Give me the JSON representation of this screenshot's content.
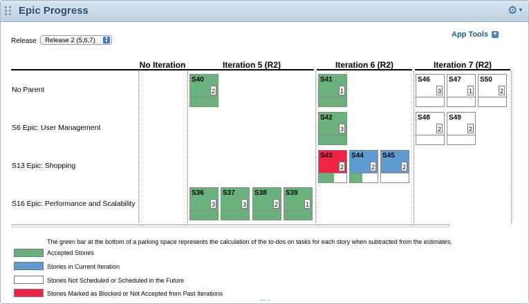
{
  "header": {
    "title": "Epic Progress",
    "gear_icon": "gear-icon"
  },
  "release": {
    "label": "Release",
    "value": "Release 2 (5,6,7)"
  },
  "app_tools": {
    "label": "App Tools"
  },
  "columns": [
    "No Iteration",
    "Iteration 5 (R2)",
    "Iteration 6 (R2)",
    "Iteration 7 (R2)"
  ],
  "rows": [
    "No Parent",
    "S6 Epic: User Management",
    "S13 Epic: Shopping",
    "S16 Epic: Performance and Scalability"
  ],
  "colors": {
    "accepted": "#6ab27b",
    "current": "#5d9bd1",
    "future": "#ffffff",
    "blocked": "#ee2447",
    "title": "#2a4f74"
  },
  "cards": [
    {
      "id": "S40",
      "estimate": "2",
      "status": "accepted",
      "progress": 1.0
    },
    {
      "id": "S41",
      "estimate": "1",
      "status": "accepted",
      "progress": 1.0
    },
    {
      "id": "S46",
      "estimate": "3",
      "status": "future",
      "progress": 0.0
    },
    {
      "id": "S47",
      "estimate": "1",
      "status": "future",
      "progress": 0.0
    },
    {
      "id": "S50",
      "estimate": "2",
      "status": "future",
      "progress": 0.0
    },
    {
      "id": "S42",
      "estimate": "3",
      "status": "accepted",
      "progress": 1.0
    },
    {
      "id": "S48",
      "estimate": "2",
      "status": "future",
      "progress": 0.0
    },
    {
      "id": "S49",
      "estimate": "2",
      "status": "future",
      "progress": 0.0
    },
    {
      "id": "S43",
      "estimate": "2",
      "status": "blocked",
      "progress": 0.55
    },
    {
      "id": "S44",
      "estimate": "2",
      "status": "current",
      "progress": 0.45
    },
    {
      "id": "S45",
      "estimate": "2",
      "status": "current",
      "progress": 0.0
    },
    {
      "id": "S36",
      "estimate": "3",
      "status": "accepted",
      "progress": 1.0
    },
    {
      "id": "S37",
      "estimate": "3",
      "status": "accepted",
      "progress": 1.0
    },
    {
      "id": "S38",
      "estimate": "2",
      "status": "accepted",
      "progress": 1.0
    },
    {
      "id": "S39",
      "estimate": "1",
      "status": "accepted",
      "progress": 1.0
    }
  ],
  "legend": {
    "note": "The green bar at the bottom of a parking space represents the calculation of the to-dos on tasks for each story when subtracted from the estimates.",
    "items": [
      {
        "label": "Accepted Stories",
        "status": "accepted"
      },
      {
        "label": "Stories in Current Iteration",
        "status": "current"
      },
      {
        "label": "Stories Not Scheduled or Scheduled in the Future",
        "status": "future"
      },
      {
        "label": "Stories Marked as Blocked or Not Accepted from Past Iterations",
        "status": "blocked"
      }
    ]
  }
}
